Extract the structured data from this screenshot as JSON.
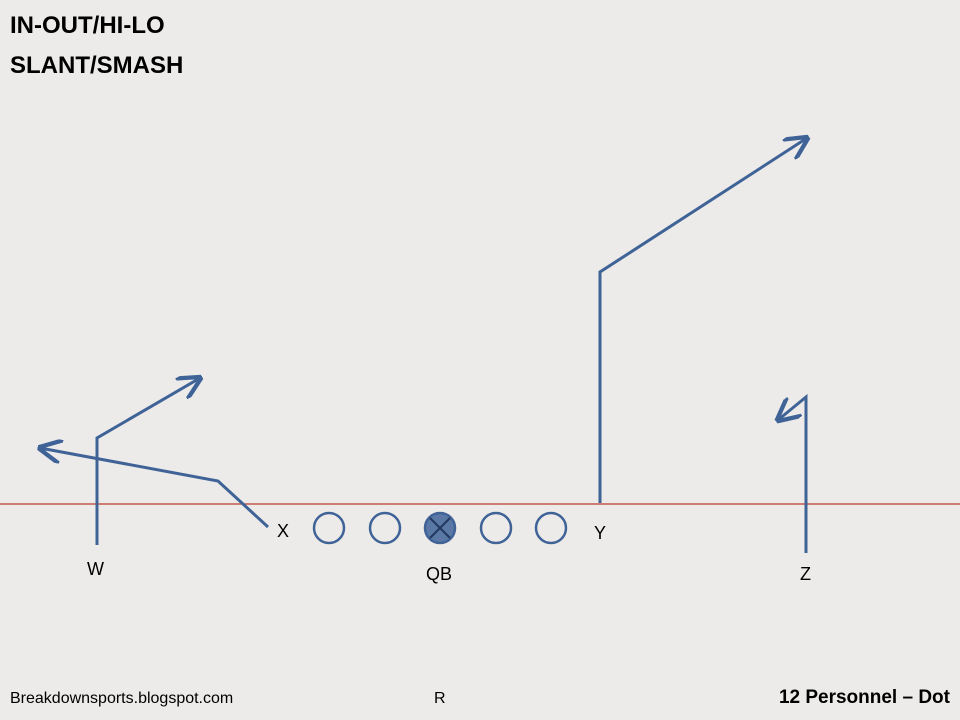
{
  "title_lines": [
    "IN-OUT/HI-LO",
    "SLANT/SMASH"
  ],
  "labels": {
    "w": "W",
    "x": "X",
    "qb": "QB",
    "y": "Y",
    "z": "Z",
    "r": "R"
  },
  "footer": {
    "left": "Breakdownsports.blogspot.com",
    "right": "12 Personnel – Dot"
  },
  "colors": {
    "route": "#3f6397",
    "los": "#c0392b",
    "background": "#ecebe9",
    "qb_fill": "#5a78a6"
  }
}
